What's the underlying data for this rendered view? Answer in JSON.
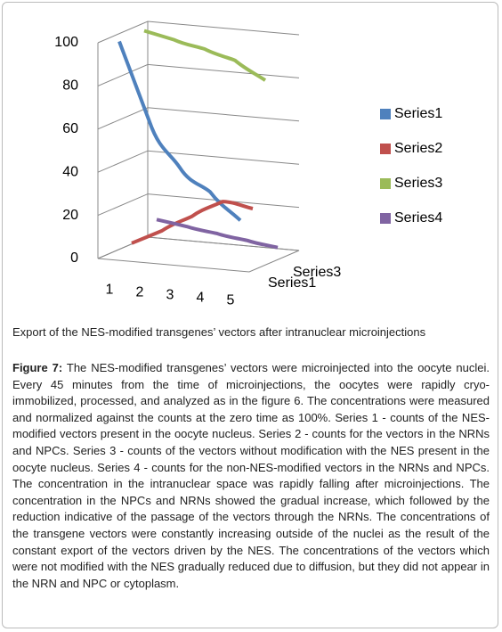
{
  "chart_data": {
    "type": "line3d",
    "categories": [
      "1",
      "2",
      "3",
      "4",
      "5"
    ],
    "series": [
      {
        "name": "Series1",
        "color": "#4f81bd",
        "values": [
          100,
          64,
          44,
          34,
          22
        ]
      },
      {
        "name": "Series2",
        "color": "#c0504d",
        "values": [
          4,
          11,
          19,
          27,
          25
        ]
      },
      {
        "name": "Series3",
        "color": "#9bbb59",
        "values": [
          100,
          97,
          94,
          90,
          82
        ]
      },
      {
        "name": "Series4",
        "color": "#8064a2",
        "values": [
          10,
          8,
          6,
          4,
          2
        ]
      }
    ],
    "ylim": [
      0,
      100
    ],
    "yticks": [
      0,
      20,
      40,
      60,
      80,
      100
    ],
    "grid": true,
    "legend": "right"
  },
  "caption": {
    "subtitle": "Export of the NES-modified transgenes’ vectors after intranuclear microinjections",
    "figure_label": "Figure 7:",
    "text": "The NES-modified transgenes’ vectors were microinjected into the oocyte nuclei. Every 45 minutes from the time of microinjections, the oocytes were rapidly cryo-immobilized, processed, and analyzed as in the figure 6. The concentrations were measured and normalized against the counts at the zero time as 100%. Series 1 - counts of the NES-modified vectors present in the oocyte nucleus. Series 2 - counts for the vectors in the NRNs and NPCs. Series 3 - counts of the vectors without modification with the NES present in the oocyte nucleus. Series 4 - counts for the non-NES-modified vectors in the NRNs and NPCs. The concentration in the intranuclear space was rapidly falling after microinjections. The concentration in the NPCs and NRNs showed the gradual increase, which followed by the reduction indicative of the passage of the vectors through the NRNs. The concentrations of the transgene vectors were constantly increasing outside of the nuclei as the result of the constant export of the vectors driven by the NES. The concentrations of the vectors which were not modified with the NES gradually reduced due to diffusion, but they did not appear in the NRN and NPC or cytoplasm."
  }
}
